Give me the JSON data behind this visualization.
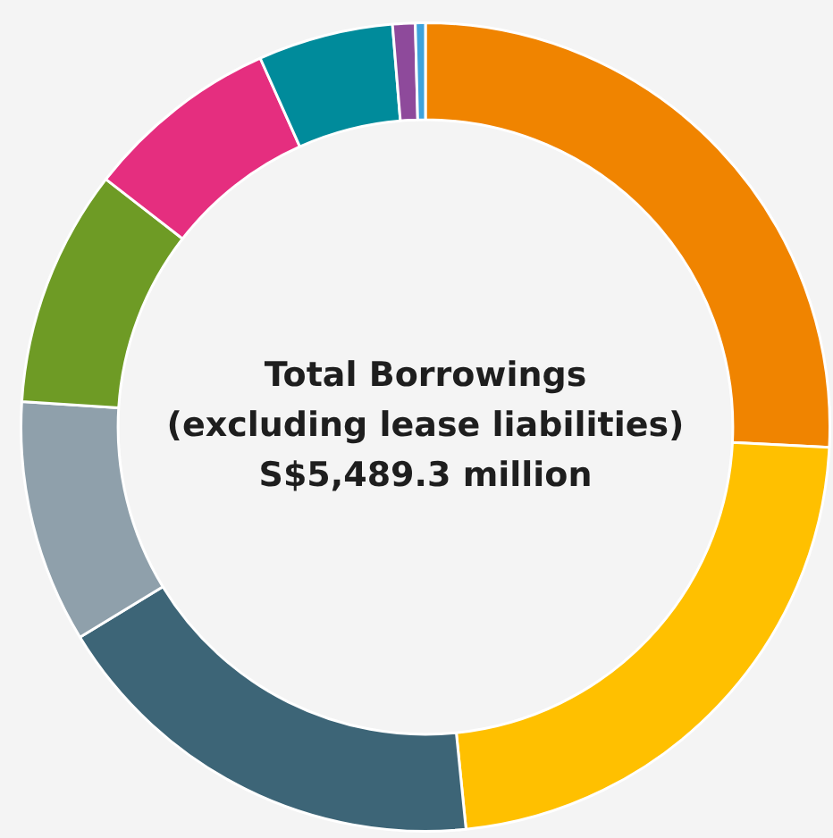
{
  "chart_data": {
    "type": "donut",
    "title": "Total Borrowings\n(excluding lease liabilities)",
    "subtitle": "S$5,489.3 million",
    "categories": [
      null,
      null,
      null,
      null,
      null,
      null,
      null,
      null,
      null
    ],
    "values": [
      25.8,
      22.6,
      17.9,
      9.7,
      9.5,
      7.8,
      5.4,
      0.9,
      0.4
    ],
    "colors": [
      "#f08400",
      "#ffc000",
      "#3d6577",
      "#8fa0ab",
      "#6e9b25",
      "#e52e7f",
      "#008b9b",
      "#8e4a9b",
      "#3ea3dc"
    ],
    "legend": false
  }
}
